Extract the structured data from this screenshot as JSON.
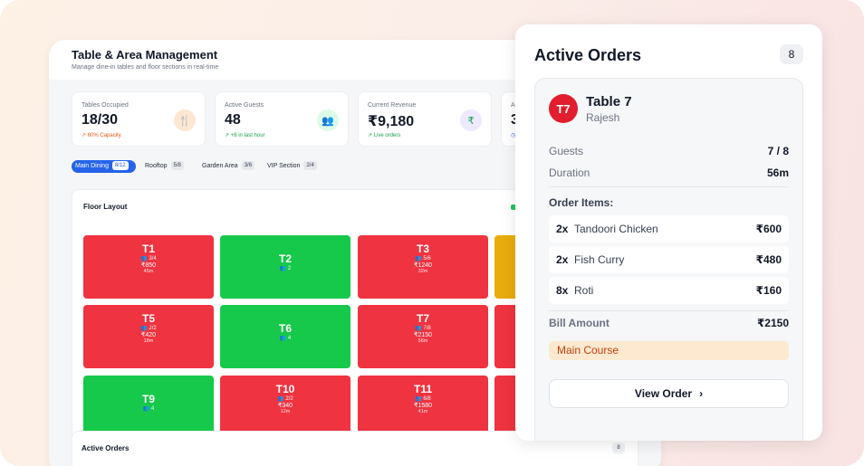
{
  "dashboard": {
    "title": "Table & Area Management",
    "subtitle": "Manage dine-in tables and floor sections in real-time"
  },
  "stats": [
    {
      "label": "Tables Occupied",
      "value": "18/30",
      "sub": "↗ 60% Capacity",
      "icon": "fork-knife-icon",
      "icon_glyph": "🍴",
      "accent": "#ea580c",
      "icon_bg": "#fde7d3"
    },
    {
      "label": "Active Guests",
      "value": "48",
      "sub": "↗ +8 in last hour",
      "icon": "users-icon",
      "icon_glyph": "👥",
      "accent": "#16a34a",
      "icon_bg": "#dcfce7"
    },
    {
      "label": "Current Revenue",
      "value": "₹9,180",
      "sub": "↗ Live orders",
      "icon": "rupee-icon",
      "icon_glyph": "₹",
      "accent": "#16a34a",
      "icon_bg": "#ede9fe"
    },
    {
      "label": "A",
      "value": "3",
      "sub": "◷",
      "icon": "clock-icon",
      "icon_glyph": "",
      "accent": "#2563eb",
      "icon_bg": "#ffffff"
    }
  ],
  "tabs": [
    {
      "label": "Main Dining",
      "count": "8/12",
      "active": true
    },
    {
      "label": "Rooftop",
      "count": "5/8",
      "active": false
    },
    {
      "label": "Garden Area",
      "count": "3/6",
      "active": false
    },
    {
      "label": "VIP Section",
      "count": "2/4",
      "active": false
    }
  ],
  "floor": {
    "title": "Floor Layout",
    "tables": [
      {
        "name": "T1",
        "guests": "👥 3/4",
        "amount": "₹850",
        "duration": "45m",
        "status": "occupied"
      },
      {
        "name": "T2",
        "guests": "👥 2",
        "amount": "",
        "duration": "",
        "status": "available"
      },
      {
        "name": "T3",
        "guests": "👥 5/6",
        "amount": "₹1240",
        "duration": "32m",
        "status": "occupied"
      },
      {
        "name": "",
        "guests": "",
        "amount": "",
        "duration": "",
        "status": "reserved"
      },
      {
        "name": "T5",
        "guests": "👥 2/2",
        "amount": "₹420",
        "duration": "18m",
        "status": "occupied"
      },
      {
        "name": "T6",
        "guests": "👥 4",
        "amount": "",
        "duration": "",
        "status": "available"
      },
      {
        "name": "T7",
        "guests": "👥 7/8",
        "amount": "₹2150",
        "duration": "56m",
        "status": "occupied"
      },
      {
        "name": "",
        "guests": "",
        "amount": "",
        "duration": "",
        "status": "occupied"
      },
      {
        "name": "T9",
        "guests": "👥 4",
        "amount": "",
        "duration": "",
        "status": "available"
      },
      {
        "name": "T10",
        "guests": "👥 2/2",
        "amount": "₹340",
        "duration": "12m",
        "status": "occupied"
      },
      {
        "name": "T11",
        "guests": "👥 6/8",
        "amount": "₹1580",
        "duration": "41m",
        "status": "occupied"
      },
      {
        "name": "",
        "guests": "",
        "amount": "",
        "duration": "",
        "status": "occupied"
      }
    ],
    "status_colors": {
      "occupied": "#ef3340",
      "available": "#16c94a",
      "reserved": "#e8ac0c"
    }
  },
  "bottom_orders": {
    "title": "Active Orders",
    "count": "8"
  },
  "active_orders": {
    "title": "Active Orders",
    "count": "8",
    "order": {
      "avatar": "T7",
      "table": "Table 7",
      "customer": "Rajesh",
      "guests_label": "Guests",
      "guests_value": "7 / 8",
      "duration_label": "Duration",
      "duration_value": "56m",
      "items_title": "Order Items:",
      "items": [
        {
          "qty": "2x",
          "name": "Tandoori Chicken",
          "price": "₹600"
        },
        {
          "qty": "2x",
          "name": "Fish Curry",
          "price": "₹480"
        },
        {
          "qty": "8x",
          "name": "Roti",
          "price": "₹160"
        }
      ],
      "bill_label": "Bill Amount",
      "bill_value": "₹2150",
      "course": "Main Course",
      "view_label": "View Order"
    }
  }
}
